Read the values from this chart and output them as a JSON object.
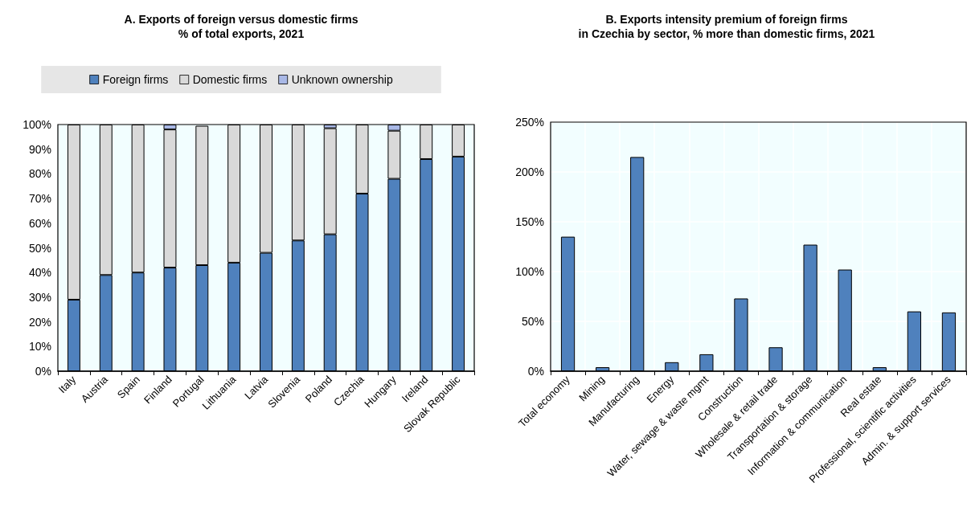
{
  "chart_data": [
    {
      "type": "bar",
      "title": "A. Exports of foreign versus domestic firms",
      "subtitle": "% of total exports, 2021",
      "stacked": true,
      "legend": "top",
      "grid": false,
      "categories": [
        "Italy",
        "Austria",
        "Spain",
        "Finland",
        "Portugal",
        "Lithuania",
        "Latvia",
        "Slovenia",
        "Poland",
        "Czechia",
        "Hungary",
        "Ireland",
        "Slovak Republic"
      ],
      "series": [
        {
          "name": "Foreign firms",
          "color": "#4f81bd",
          "values": [
            29,
            39,
            40,
            42,
            43,
            44,
            48,
            53,
            55.5,
            72,
            78,
            86,
            87
          ]
        },
        {
          "name": "Domestic firms",
          "color": "#d9d9d9",
          "values": [
            71,
            61,
            60,
            56,
            56.5,
            56,
            52,
            47,
            43,
            28,
            19.5,
            14,
            13
          ]
        },
        {
          "name": "Unknown ownership",
          "color": "#a9b8e6",
          "values": [
            null,
            null,
            null,
            2,
            null,
            null,
            null,
            null,
            1.5,
            null,
            2.5,
            null,
            null
          ]
        }
      ],
      "ylim": [
        0,
        100
      ],
      "yticks": [
        {
          "value": 0,
          "label": "0%"
        },
        {
          "value": 10,
          "label": "10%"
        },
        {
          "value": 20,
          "label": "20%"
        },
        {
          "value": 30,
          "label": "30%"
        },
        {
          "value": 40,
          "label": "40%"
        },
        {
          "value": 50,
          "label": "50%"
        },
        {
          "value": 60,
          "label": "60%"
        },
        {
          "value": 70,
          "label": "70%"
        },
        {
          "value": 80,
          "label": "80%"
        },
        {
          "value": 90,
          "label": "90%"
        },
        {
          "value": 100,
          "label": "100%"
        }
      ]
    },
    {
      "type": "bar",
      "title": "B. Exports intensity premium of foreign firms",
      "subtitle": "in Czechia by sector, % more than domestic firms, 2021",
      "grid": true,
      "categories": [
        "Total economy",
        "Mining",
        "Manufacturing",
        "Energy",
        "Water, sewage & waste mgmt",
        "Construction",
        "Wholesale & retail trade",
        "Transportation & storage",
        "Information & communication",
        "Real estate",
        "Professional, scientific activities",
        "Admin. & support services"
      ],
      "series": [
        {
          "color": "#4f81bd",
          "values": [
            135,
            4,
            215,
            9,
            17,
            73,
            24,
            127,
            102,
            4,
            60,
            59
          ]
        }
      ],
      "ylim": [
        0,
        250
      ],
      "yticks": [
        {
          "value": 0,
          "label": "0%"
        },
        {
          "value": 50,
          "label": "50%"
        },
        {
          "value": 100,
          "label": "100%"
        },
        {
          "value": 150,
          "label": "150%"
        },
        {
          "value": 200,
          "label": "200%"
        },
        {
          "value": 250,
          "label": "250%"
        }
      ]
    }
  ]
}
